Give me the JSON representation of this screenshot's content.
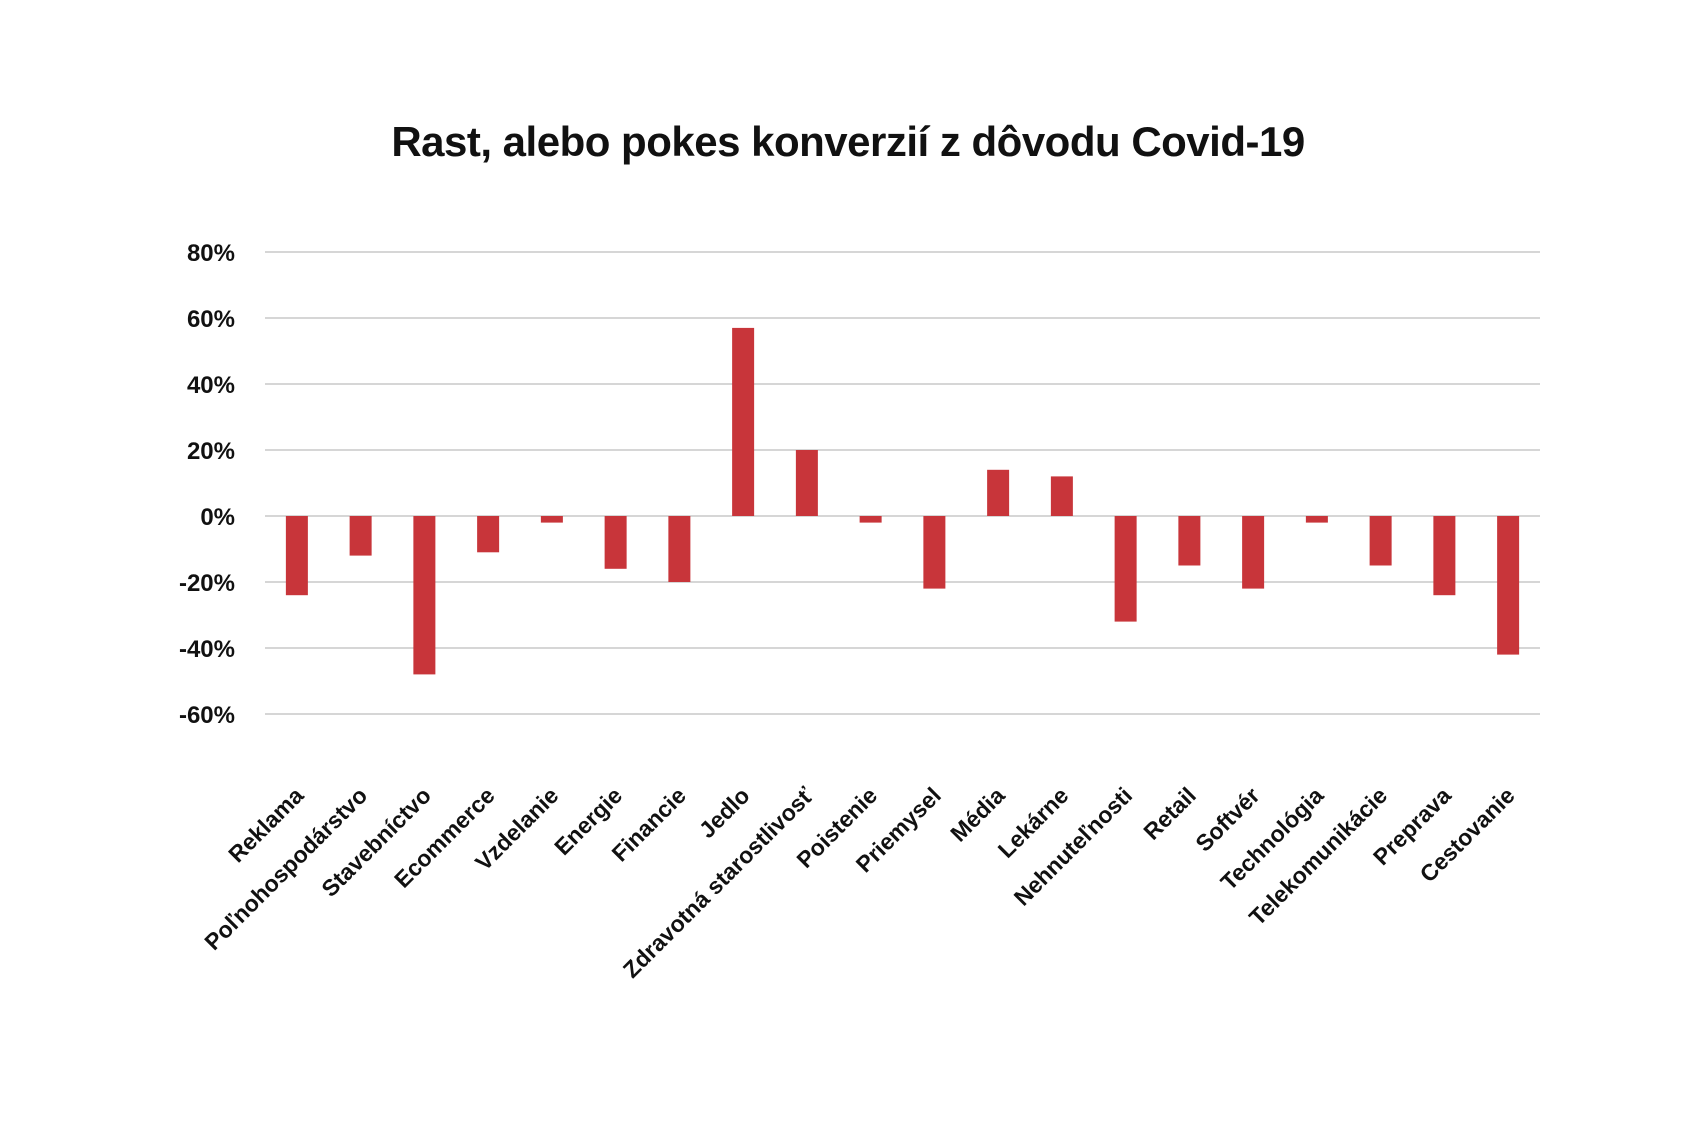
{
  "chart_data": {
    "type": "bar",
    "title": "Rast, alebo pokes konverzií z dôvodu Covid-19",
    "xlabel": "",
    "ylabel": "",
    "ylim": [
      -60,
      80
    ],
    "yticks": [
      "80%",
      "60%",
      "40%",
      "20%",
      "0%",
      "-20%",
      "-40%",
      "-60%"
    ],
    "ytick_values": [
      80,
      60,
      40,
      20,
      0,
      -20,
      -40,
      -60
    ],
    "grid": true,
    "bar_color": "#c8353a",
    "categories": [
      "Reklama",
      "Poľnohospodárstvo",
      "Stavebníctvo",
      "Ecommerce",
      "Vzdelanie",
      "Energie",
      "Financie",
      "Jedlo",
      "Zdravotná starostlivosť",
      "Poistenie",
      "Priemysel",
      "Média",
      "Lekárne",
      "Nehnuteľnosti",
      "Retail",
      "Softvér",
      "Technológia",
      "Telekomunikácie",
      "Preprava",
      "Cestovanie"
    ],
    "values": [
      -24,
      -12,
      -48,
      -11,
      -2,
      -16,
      -20,
      57,
      20,
      -2,
      -22,
      14,
      12,
      -32,
      -15,
      -22,
      -2,
      -15,
      -24,
      -42
    ]
  }
}
